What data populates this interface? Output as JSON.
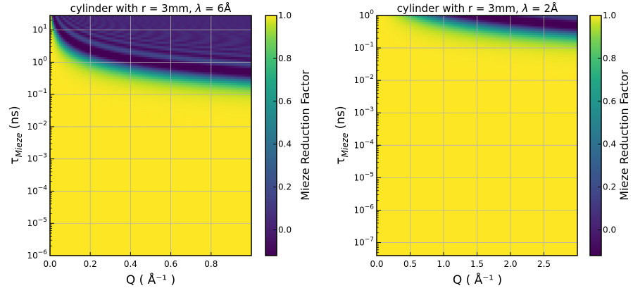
{
  "chart_data": [
    {
      "type": "heatmap",
      "title": "cylinder with r = 3mm, λ = 6Å",
      "title_parts": {
        "prefix": "cylinder with r = 3mm, ",
        "sym": "λ",
        "suffix": " = 6Å"
      },
      "xlabel": "Q ( Å⁻¹ )",
      "ylabel": "τ_Mieze (ns)",
      "ylabel_parts": {
        "main": "τ",
        "sub": "Mieze",
        "unit": " (ns)"
      },
      "x_scale": "linear",
      "y_scale": "log",
      "xlim": [
        0,
        1.0
      ],
      "ylim_exp": [
        -6,
        1.45
      ],
      "xticks": [
        0.0,
        0.2,
        0.4,
        0.6,
        0.8
      ],
      "xtick_labels": [
        "0.0",
        "0.2",
        "0.4",
        "0.6",
        "0.8"
      ],
      "ytick_exps": [
        1,
        0,
        -1,
        -2,
        -3,
        -4,
        -5,
        -6
      ],
      "ytick_bases": [
        "10",
        "10",
        "10",
        "10",
        "10",
        "10",
        "10",
        "10"
      ],
      "ytick_sups": [
        "1",
        "0",
        "−1",
        "−2",
        "−3",
        "−4",
        "−5",
        "−6"
      ],
      "grid": true,
      "colormap": "viridis",
      "z_description": "Mieze reduction factor: ~1.0 (yellow) at low Q·τ, oscillating to ~0 (purple) at high Q and large τ",
      "colorbar": {
        "label": "Mieze Reduction Factor",
        "range": [
          -0.12,
          1.0
        ],
        "ticks": [
          1.0,
          0.8,
          0.6,
          0.4,
          0.2,
          0.0
        ],
        "tick_labels": [
          "1.0",
          "0.8",
          "0.6",
          "0.4",
          "0.2",
          "0.0"
        ]
      }
    },
    {
      "type": "heatmap",
      "title": "cylinder with r = 3mm, λ = 2Å",
      "title_parts": {
        "prefix": "cylinder with r = 3mm, ",
        "sym": "λ",
        "suffix": " = 2Å"
      },
      "xlabel": "Q ( Å⁻¹ )",
      "ylabel": "τ_Mieze (ns)",
      "ylabel_parts": {
        "main": "τ",
        "sub": "Mieze",
        "unit": " (ns)"
      },
      "x_scale": "linear",
      "y_scale": "log",
      "xlim": [
        0,
        3.0
      ],
      "ylim_exp": [
        -7.4,
        0
      ],
      "xticks": [
        0.0,
        0.5,
        1.0,
        1.5,
        2.0,
        2.5
      ],
      "xtick_labels": [
        "0.0",
        "0.5",
        "1.0",
        "1.5",
        "2.0",
        "2.5"
      ],
      "ytick_exps": [
        0,
        -1,
        -2,
        -3,
        -4,
        -5,
        -6,
        -7
      ],
      "ytick_bases": [
        "10",
        "10",
        "10",
        "10",
        "10",
        "10",
        "10",
        "10"
      ],
      "ytick_sups": [
        "0",
        "−1",
        "−2",
        "−3",
        "−4",
        "−5",
        "−6",
        "−7"
      ],
      "grid": true,
      "colormap": "viridis",
      "z_description": "Mieze reduction factor: ~1.0 (yellow) for τ below ~0.1 ns, oscillating to ~0 (purple) near τ ≈ 1 ns",
      "colorbar": {
        "label": "Mieze Reduction Factor",
        "range": [
          -0.12,
          1.0
        ],
        "ticks": [
          1.0,
          0.8,
          0.6,
          0.4,
          0.2,
          0.0
        ],
        "tick_labels": [
          "1.0",
          "0.8",
          "0.6",
          "0.4",
          "0.2",
          "0.0"
        ]
      }
    }
  ]
}
